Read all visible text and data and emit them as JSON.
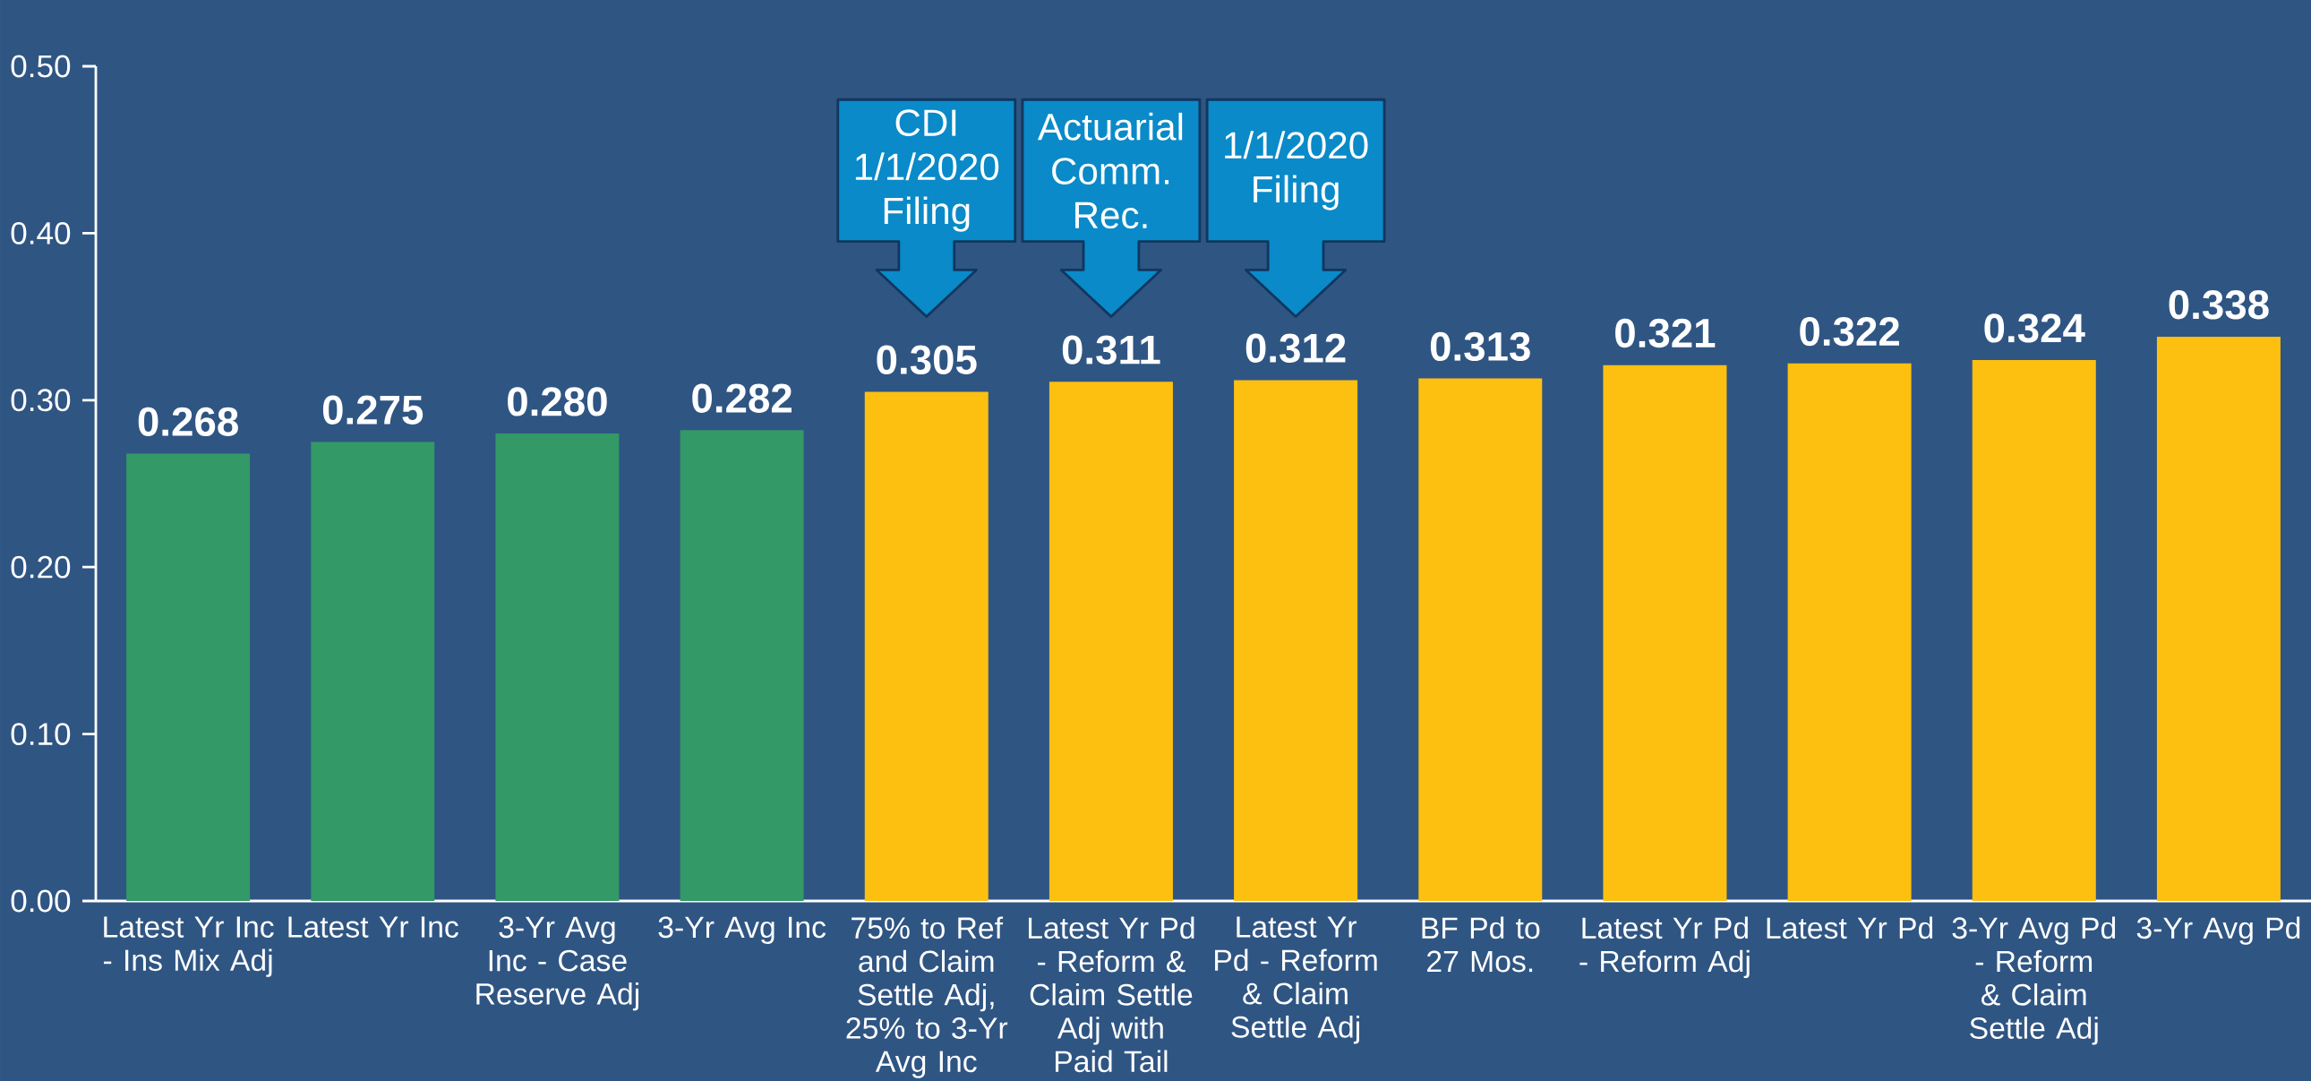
{
  "chart_data": {
    "type": "bar",
    "categories": [
      "Latest Yr Inc - Ins Mix Adj",
      "Latest Yr Inc",
      "3-Yr Avg Inc - Case Reserve Adj",
      "3-Yr Avg Inc",
      "75% to Ref and Claim Settle Adj, 25% to 3-Yr Avg Inc",
      "Latest Yr Pd - Reform & Claim Settle Adj with Paid Tail",
      "Latest Yr Pd - Reform & Claim Settle Adj",
      "BF Pd to 27 Mos.",
      "Latest Yr Pd - Reform Adj",
      "Latest Yr Pd",
      "3-Yr Avg Pd - Reform & Claim Settle Adj",
      "3-Yr Avg Pd"
    ],
    "values": [
      0.268,
      0.275,
      0.28,
      0.282,
      0.305,
      0.311,
      0.312,
      0.313,
      0.321,
      0.322,
      0.324,
      0.338
    ],
    "value_labels": [
      "0.268",
      "0.275",
      "0.280",
      "0.282",
      "0.305",
      "0.311",
      "0.312",
      "0.313",
      "0.321",
      "0.322",
      "0.324",
      "0.338"
    ],
    "colors": [
      "#339966",
      "#339966",
      "#339966",
      "#339966",
      "#fdc010",
      "#fdc010",
      "#fdc010",
      "#fdc010",
      "#fdc010",
      "#fdc010",
      "#fdc010",
      "#fdc010"
    ],
    "ylim": [
      0,
      0.5
    ],
    "yticks": [
      {
        "value": 0,
        "label": "0.00"
      },
      {
        "value": 0.1,
        "label": "0.10"
      },
      {
        "value": 0.2,
        "label": "0.20"
      },
      {
        "value": 0.3,
        "label": "0.30"
      },
      {
        "value": 0.4,
        "label": "0.40"
      },
      {
        "value": 0.5,
        "label": "0.50"
      }
    ],
    "grid": false,
    "annotations": [
      "CDI 1/1/2020 Filing",
      "Actuarial Comm. Rec.",
      "1/1/2020 Filing"
    ]
  }
}
